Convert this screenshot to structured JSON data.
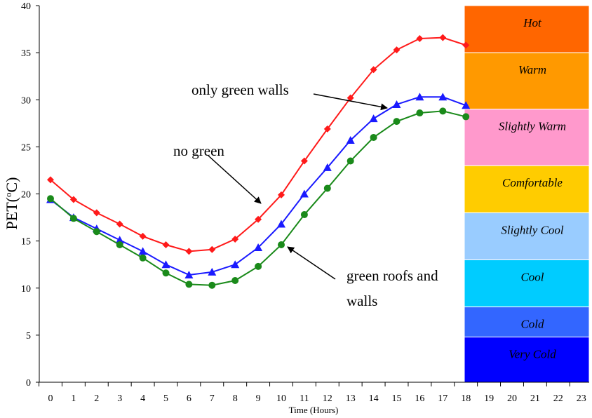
{
  "chart_data": {
    "type": "line",
    "title": "",
    "xlabel": "Time (Hours)",
    "ylabel_main": "PET",
    "ylabel_unit": "(oC)",
    "ylabel_unit_parts": {
      "open": "(",
      "degree": "o",
      "rest": "C)"
    },
    "xlim": [
      0,
      23
    ],
    "ylim": [
      0,
      40
    ],
    "x_ticks": [
      0,
      1,
      2,
      3,
      4,
      5,
      6,
      7,
      8,
      9,
      10,
      11,
      12,
      13,
      14,
      15,
      16,
      17,
      18,
      19,
      20,
      21,
      22,
      23
    ],
    "y_ticks": [
      0,
      5,
      10,
      15,
      20,
      25,
      30,
      35,
      40
    ],
    "grid": false,
    "series": [
      {
        "name": "no green",
        "color": "#ff1a1a",
        "marker": "diamond",
        "x": [
          0,
          1,
          2,
          3,
          4,
          5,
          6,
          7,
          8,
          9,
          10,
          11,
          12,
          13,
          14,
          15,
          16,
          17,
          18
        ],
        "values": [
          21.5,
          19.4,
          18.0,
          16.8,
          15.5,
          14.6,
          13.9,
          14.1,
          15.2,
          17.3,
          19.9,
          23.5,
          26.9,
          30.2,
          33.2,
          35.3,
          36.5,
          36.6,
          35.8
        ]
      },
      {
        "name": "only green walls",
        "color": "#1a1aff",
        "marker": "triangle",
        "x": [
          0,
          1,
          2,
          3,
          4,
          5,
          6,
          7,
          8,
          9,
          10,
          11,
          12,
          13,
          14,
          15,
          16,
          17,
          18
        ],
        "values": [
          19.4,
          17.5,
          16.3,
          15.1,
          13.9,
          12.5,
          11.4,
          11.7,
          12.5,
          14.3,
          16.8,
          20.0,
          22.8,
          25.7,
          28.0,
          29.5,
          30.3,
          30.3,
          29.4
        ]
      },
      {
        "name": "green roofs and walls",
        "color": "#1a8a1a",
        "marker": "circle",
        "x": [
          0,
          1,
          2,
          3,
          4,
          5,
          6,
          7,
          8,
          9,
          10,
          11,
          12,
          13,
          14,
          15,
          16,
          17,
          18
        ],
        "values": [
          19.5,
          17.4,
          16.0,
          14.6,
          13.2,
          11.6,
          10.4,
          10.3,
          10.8,
          12.3,
          14.6,
          17.8,
          20.6,
          23.5,
          26.0,
          27.7,
          28.6,
          28.8,
          28.2
        ]
      }
    ],
    "annotations": [
      {
        "text": "only green walls"
      },
      {
        "text": "no green"
      },
      {
        "text_lines": [
          "green roofs and",
          "walls"
        ]
      }
    ],
    "comfort_bands": [
      {
        "label": "Hot",
        "color": "#ff6600",
        "from": 35,
        "to": 40
      },
      {
        "label": "Warm",
        "color": "#ff9900",
        "from": 29,
        "to": 35
      },
      {
        "label": "Slightly Warm",
        "color": "#ff99cc",
        "from": 23,
        "to": 29
      },
      {
        "label": "Comfortable",
        "color": "#ffcc00",
        "from": 18,
        "to": 23
      },
      {
        "label": "Slightly Cool",
        "color": "#99ccff",
        "from": 13,
        "to": 18
      },
      {
        "label": "Cool",
        "color": "#00ccff",
        "from": 8,
        "to": 13
      },
      {
        "label": "Cold",
        "color": "#3366ff",
        "from": 4.8,
        "to": 8
      },
      {
        "label": "Very Cold",
        "color": "#0000ff",
        "from": 0,
        "to": 4.8
      }
    ]
  }
}
